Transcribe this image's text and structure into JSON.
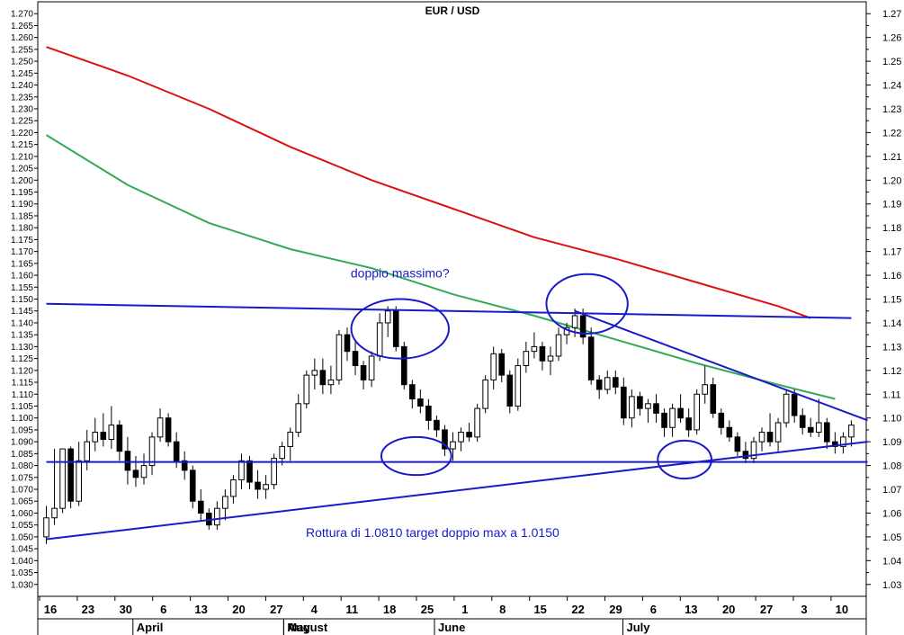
{
  "chart_data": {
    "type": "candlestick",
    "title": "EUR / USD",
    "y_left": {
      "min": 1.025,
      "max": 1.275,
      "step": 0.005
    },
    "y_right": {
      "min": 1.025,
      "max": 1.275,
      "step": 0.01
    },
    "x_day_labels": [
      "16",
      "23",
      "30",
      "6",
      "13",
      "20",
      "27",
      "4",
      "11",
      "18",
      "25",
      "1",
      "8",
      "15",
      "22",
      "29",
      "6",
      "13",
      "20",
      "27",
      "3",
      "10"
    ],
    "x_month_labels": [
      {
        "label": "April",
        "after_day": "30"
      },
      {
        "label": "May",
        "after_day": "27"
      },
      {
        "label": "June",
        "after_day": "25"
      },
      {
        "label": "July",
        "after_day": "29"
      },
      {
        "label": "August",
        "after_day": "27"
      }
    ],
    "candles": [
      [
        1.05,
        1.063,
        1.047,
        1.058
      ],
      [
        1.058,
        1.087,
        1.055,
        1.062
      ],
      [
        1.062,
        1.087,
        1.06,
        1.087
      ],
      [
        1.087,
        1.088,
        1.062,
        1.065
      ],
      [
        1.065,
        1.09,
        1.063,
        1.082
      ],
      [
        1.082,
        1.095,
        1.078,
        1.09
      ],
      [
        1.09,
        1.1,
        1.086,
        1.094
      ],
      [
        1.094,
        1.102,
        1.088,
        1.091
      ],
      [
        1.091,
        1.105,
        1.087,
        1.097
      ],
      [
        1.097,
        1.099,
        1.082,
        1.086
      ],
      [
        1.086,
        1.092,
        1.072,
        1.078
      ],
      [
        1.078,
        1.084,
        1.071,
        1.075
      ],
      [
        1.075,
        1.085,
        1.072,
        1.08
      ],
      [
        1.08,
        1.094,
        1.076,
        1.092
      ],
      [
        1.092,
        1.104,
        1.09,
        1.1
      ],
      [
        1.1,
        1.102,
        1.088,
        1.09
      ],
      [
        1.09,
        1.094,
        1.079,
        1.082
      ],
      [
        1.082,
        1.086,
        1.074,
        1.078
      ],
      [
        1.078,
        1.08,
        1.062,
        1.065
      ],
      [
        1.065,
        1.07,
        1.057,
        1.06
      ],
      [
        1.06,
        1.062,
        1.053,
        1.055
      ],
      [
        1.055,
        1.065,
        1.053,
        1.062
      ],
      [
        1.062,
        1.07,
        1.057,
        1.067
      ],
      [
        1.067,
        1.076,
        1.064,
        1.074
      ],
      [
        1.074,
        1.085,
        1.07,
        1.082
      ],
      [
        1.082,
        1.084,
        1.07,
        1.073
      ],
      [
        1.073,
        1.078,
        1.066,
        1.07
      ],
      [
        1.07,
        1.076,
        1.066,
        1.072
      ],
      [
        1.072,
        1.085,
        1.07,
        1.083
      ],
      [
        1.083,
        1.09,
        1.08,
        1.088
      ],
      [
        1.088,
        1.096,
        1.082,
        1.094
      ],
      [
        1.094,
        1.11,
        1.092,
        1.106
      ],
      [
        1.106,
        1.12,
        1.104,
        1.118
      ],
      [
        1.118,
        1.125,
        1.112,
        1.12
      ],
      [
        1.12,
        1.125,
        1.11,
        1.114
      ],
      [
        1.114,
        1.122,
        1.11,
        1.116
      ],
      [
        1.116,
        1.137,
        1.114,
        1.135
      ],
      [
        1.135,
        1.138,
        1.124,
        1.128
      ],
      [
        1.128,
        1.132,
        1.118,
        1.122
      ],
      [
        1.122,
        1.124,
        1.112,
        1.116
      ],
      [
        1.116,
        1.128,
        1.113,
        1.126
      ],
      [
        1.126,
        1.144,
        1.124,
        1.14
      ],
      [
        1.14,
        1.147,
        1.134,
        1.145
      ],
      [
        1.145,
        1.147,
        1.128,
        1.13
      ],
      [
        1.13,
        1.132,
        1.112,
        1.114
      ],
      [
        1.114,
        1.116,
        1.104,
        1.108
      ],
      [
        1.108,
        1.112,
        1.102,
        1.105
      ],
      [
        1.105,
        1.108,
        1.095,
        1.099
      ],
      [
        1.099,
        1.101,
        1.092,
        1.095
      ],
      [
        1.095,
        1.097,
        1.084,
        1.087
      ],
      [
        1.087,
        1.094,
        1.082,
        1.09
      ],
      [
        1.09,
        1.096,
        1.086,
        1.094
      ],
      [
        1.094,
        1.098,
        1.09,
        1.092
      ],
      [
        1.092,
        1.106,
        1.09,
        1.104
      ],
      [
        1.104,
        1.118,
        1.102,
        1.116
      ],
      [
        1.116,
        1.13,
        1.112,
        1.127
      ],
      [
        1.127,
        1.129,
        1.115,
        1.118
      ],
      [
        1.118,
        1.12,
        1.102,
        1.105
      ],
      [
        1.105,
        1.125,
        1.103,
        1.122
      ],
      [
        1.122,
        1.132,
        1.119,
        1.128
      ],
      [
        1.128,
        1.136,
        1.125,
        1.13
      ],
      [
        1.13,
        1.132,
        1.12,
        1.124
      ],
      [
        1.124,
        1.13,
        1.118,
        1.126
      ],
      [
        1.126,
        1.138,
        1.124,
        1.135
      ],
      [
        1.135,
        1.14,
        1.131,
        1.138
      ],
      [
        1.138,
        1.146,
        1.134,
        1.143
      ],
      [
        1.143,
        1.146,
        1.131,
        1.134
      ],
      [
        1.134,
        1.138,
        1.114,
        1.116
      ],
      [
        1.116,
        1.118,
        1.108,
        1.112
      ],
      [
        1.112,
        1.12,
        1.11,
        1.117
      ],
      [
        1.117,
        1.12,
        1.11,
        1.113
      ],
      [
        1.113,
        1.117,
        1.097,
        1.1
      ],
      [
        1.1,
        1.112,
        1.096,
        1.109
      ],
      [
        1.109,
        1.111,
        1.101,
        1.104
      ],
      [
        1.104,
        1.108,
        1.098,
        1.106
      ],
      [
        1.106,
        1.11,
        1.098,
        1.102
      ],
      [
        1.102,
        1.104,
        1.092,
        1.096
      ],
      [
        1.096,
        1.106,
        1.092,
        1.104
      ],
      [
        1.104,
        1.11,
        1.098,
        1.1
      ],
      [
        1.1,
        1.104,
        1.092,
        1.095
      ],
      [
        1.095,
        1.112,
        1.093,
        1.11
      ],
      [
        1.11,
        1.122,
        1.106,
        1.114
      ],
      [
        1.114,
        1.117,
        1.1,
        1.102
      ],
      [
        1.102,
        1.104,
        1.093,
        1.096
      ],
      [
        1.096,
        1.099,
        1.09,
        1.092
      ],
      [
        1.092,
        1.094,
        1.084,
        1.086
      ],
      [
        1.086,
        1.09,
        1.081,
        1.083
      ],
      [
        1.083,
        1.092,
        1.081,
        1.09
      ],
      [
        1.09,
        1.096,
        1.086,
        1.094
      ],
      [
        1.094,
        1.102,
        1.088,
        1.09
      ],
      [
        1.09,
        1.1,
        1.086,
        1.098
      ],
      [
        1.098,
        1.112,
        1.096,
        1.11
      ],
      [
        1.11,
        1.112,
        1.098,
        1.101
      ],
      [
        1.101,
        1.104,
        1.093,
        1.096
      ],
      [
        1.096,
        1.1,
        1.092,
        1.094
      ],
      [
        1.094,
        1.108,
        1.092,
        1.098
      ],
      [
        1.098,
        1.1,
        1.087,
        1.09
      ],
      [
        1.09,
        1.094,
        1.085,
        1.088
      ],
      [
        1.088,
        1.094,
        1.085,
        1.092
      ],
      [
        1.092,
        1.099,
        1.088,
        1.097
      ]
    ],
    "moving_averages": [
      {
        "color": "#dd1111",
        "points": [
          [
            0,
            1.256
          ],
          [
            10,
            1.244
          ],
          [
            20,
            1.23
          ],
          [
            30,
            1.214
          ],
          [
            40,
            1.2
          ],
          [
            50,
            1.188
          ],
          [
            60,
            1.176
          ],
          [
            70,
            1.167
          ],
          [
            80,
            1.157
          ],
          [
            90,
            1.147
          ],
          [
            94,
            1.142
          ]
        ]
      },
      {
        "color": "#33aa55",
        "points": [
          [
            0,
            1.219
          ],
          [
            10,
            1.198
          ],
          [
            20,
            1.182
          ],
          [
            30,
            1.171
          ],
          [
            40,
            1.163
          ],
          [
            50,
            1.152
          ],
          [
            60,
            1.143
          ],
          [
            70,
            1.133
          ],
          [
            80,
            1.123
          ],
          [
            90,
            1.114
          ],
          [
            97,
            1.108
          ]
        ]
      }
    ],
    "trend_lines": [
      {
        "color": "#1a1acc",
        "points": [
          [
            0,
            1.148
          ],
          [
            99,
            1.142
          ]
        ]
      },
      {
        "color": "#1a1acc",
        "points": [
          [
            65,
            1.145
          ],
          [
            101,
            1.099
          ]
        ]
      },
      {
        "color": "#1a1acc",
        "points": [
          [
            0,
            1.049
          ],
          [
            101,
            1.09
          ]
        ]
      },
      {
        "color": "#1a1acc",
        "points": [
          [
            0,
            1.0815
          ],
          [
            101,
            1.0815
          ]
        ]
      }
    ],
    "ellipses": [
      {
        "color": "#1a1acc",
        "cx": 43.5,
        "cy": 1.1375,
        "rx": 6,
        "ry": 0.0125
      },
      {
        "color": "#1a1acc",
        "cx": 66.5,
        "cy": 1.148,
        "rx": 5,
        "ry": 0.0125
      },
      {
        "color": "#1a1acc",
        "cx": 45.5,
        "cy": 1.084,
        "rx": 4.3,
        "ry": 0.008
      },
      {
        "color": "#1a1acc",
        "cx": 78.5,
        "cy": 1.0825,
        "rx": 3.3,
        "ry": 0.008
      }
    ],
    "annotations": [
      {
        "text": "doppio massimo?",
        "color": "#1a1acc",
        "x": 43.5,
        "y": 1.159
      },
      {
        "text": "Rottura di 1.0810 target doppio max a 1.0150",
        "color": "#1a1acc",
        "x": 47.5,
        "y": 1.05
      }
    ],
    "grid": false
  }
}
